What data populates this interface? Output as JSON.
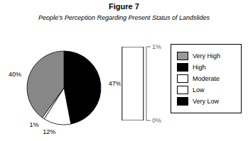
{
  "chart_data": [
    {
      "type": "pie",
      "title": "Figure 7",
      "subtitle": "People’s Perception Regarding Present Status of Landslides",
      "values": [
        47,
        12,
        1,
        40
      ],
      "value_labels": [
        "47%",
        "12%",
        "1%",
        "40%"
      ],
      "colors": [
        "#000000",
        "#ffffff",
        "#ffffff",
        "#888888"
      ]
    },
    {
      "type": "bar",
      "categories": [
        null
      ],
      "values": [
        1
      ],
      "color": "#ffffff",
      "ylim": [
        0,
        1
      ],
      "yticks": [
        {
          "value": 0,
          "label": "0%"
        },
        {
          "value": 1,
          "label": "1%"
        }
      ]
    },
    {
      "type": "legend",
      "categories": [
        "Very High",
        "High",
        "Moderate",
        "Low",
        "Very Low"
      ],
      "colors": [
        "#999999",
        "#000000",
        "#ffffff",
        "#ffffff",
        "#000000"
      ]
    }
  ]
}
